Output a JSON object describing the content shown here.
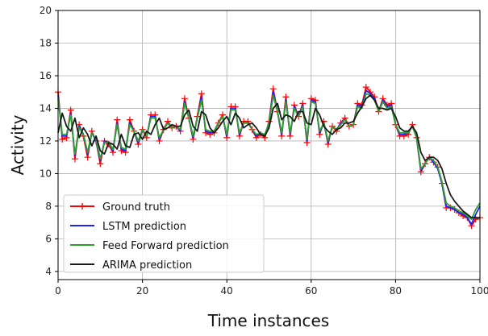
{
  "chart_data": {
    "type": "line",
    "xlabel": "Time instances",
    "ylabel": "Activity",
    "xlim": [
      0,
      100
    ],
    "ylim": [
      3.5,
      20
    ],
    "xticks": [
      0,
      20,
      40,
      60,
      80,
      100
    ],
    "yticks": [
      4,
      6,
      8,
      10,
      12,
      14,
      16,
      18,
      20
    ],
    "grid": true,
    "legend_position": "lower-left",
    "series": [
      {
        "name": "Ground truth",
        "color": "#ff0000",
        "marker": "plus",
        "x": [
          0,
          1,
          2,
          3,
          4,
          5,
          6,
          7,
          8,
          9,
          10,
          11,
          12,
          13,
          14,
          15,
          16,
          17,
          18,
          19,
          20,
          21,
          22,
          23,
          24,
          25,
          26,
          27,
          28,
          29,
          30,
          31,
          32,
          33,
          34,
          35,
          36,
          37,
          38,
          39,
          40,
          41,
          42,
          43,
          44,
          45,
          46,
          47,
          48,
          49,
          50,
          51,
          52,
          53,
          54,
          55,
          56,
          57,
          58,
          59,
          60,
          61,
          62,
          63,
          64,
          65,
          66,
          67,
          68,
          69,
          70,
          71,
          72,
          73,
          74,
          75,
          76,
          77,
          78,
          79,
          80,
          81,
          82,
          83,
          84,
          85,
          86,
          87,
          88,
          89,
          90,
          91,
          92,
          93,
          94,
          95,
          96,
          97,
          98,
          99,
          100
        ],
        "y": [
          15.0,
          12.1,
          12.2,
          13.9,
          10.9,
          13.0,
          12.3,
          11.0,
          12.6,
          12.0,
          10.6,
          12.0,
          11.8,
          11.3,
          13.3,
          11.4,
          11.3,
          13.3,
          12.6,
          11.8,
          12.7,
          12.2,
          13.6,
          13.6,
          12.0,
          12.7,
          13.2,
          12.8,
          12.9,
          12.6,
          14.6,
          13.4,
          12.1,
          13.5,
          14.9,
          12.5,
          12.4,
          12.5,
          13.1,
          13.6,
          12.2,
          14.1,
          14.1,
          12.3,
          13.2,
          13.2,
          12.7,
          12.2,
          12.4,
          12.2,
          13.2,
          15.2,
          13.8,
          12.3,
          14.7,
          12.3,
          14.2,
          13.5,
          14.3,
          11.9,
          14.6,
          14.5,
          12.4,
          13.2,
          11.8,
          12.9,
          12.6,
          13.1,
          13.4,
          12.9,
          13.0,
          14.3,
          14.2,
          15.3,
          15.0,
          14.7,
          13.8,
          14.6,
          14.2,
          14.3,
          13.0,
          12.3,
          12.3,
          12.4,
          13.0,
          12.2,
          10.1,
          10.6,
          11.0,
          10.7,
          10.4,
          9.4,
          7.9,
          7.9,
          7.8,
          7.6,
          7.4,
          7.3,
          6.8,
          7.2,
          7.3
        ]
      },
      {
        "name": "LSTM prediction",
        "color": "#1f1fff",
        "x": [
          0,
          1,
          2,
          3,
          4,
          5,
          6,
          7,
          8,
          9,
          10,
          11,
          12,
          13,
          14,
          15,
          16,
          17,
          18,
          19,
          20,
          21,
          22,
          23,
          24,
          25,
          26,
          27,
          28,
          29,
          30,
          31,
          32,
          33,
          34,
          35,
          36,
          37,
          38,
          39,
          40,
          41,
          42,
          43,
          44,
          45,
          46,
          47,
          48,
          49,
          50,
          51,
          52,
          53,
          54,
          55,
          56,
          57,
          58,
          59,
          60,
          61,
          62,
          63,
          64,
          65,
          66,
          67,
          68,
          69,
          70,
          71,
          72,
          73,
          74,
          75,
          76,
          77,
          78,
          79,
          80,
          81,
          82,
          83,
          84,
          85,
          86,
          87,
          88,
          89,
          90,
          91,
          92,
          93,
          94,
          95,
          96,
          97,
          98,
          99,
          100
        ],
        "y": [
          14.8,
          12.3,
          12.3,
          13.7,
          11.1,
          12.9,
          12.4,
          11.2,
          12.5,
          12.0,
          10.8,
          12.0,
          11.9,
          11.4,
          13.1,
          11.5,
          11.4,
          13.1,
          12.6,
          11.9,
          12.7,
          12.3,
          13.5,
          13.5,
          12.1,
          12.7,
          13.1,
          12.8,
          12.9,
          12.6,
          14.4,
          13.4,
          12.2,
          13.4,
          14.7,
          12.6,
          12.5,
          12.6,
          13.1,
          13.5,
          12.3,
          14.0,
          14.0,
          12.4,
          13.1,
          13.1,
          12.7,
          12.3,
          12.5,
          12.3,
          13.1,
          15.0,
          13.8,
          12.4,
          14.5,
          12.4,
          14.1,
          13.5,
          14.2,
          12.0,
          14.5,
          14.4,
          12.5,
          13.1,
          11.9,
          12.9,
          12.7,
          13.1,
          13.3,
          12.9,
          13.0,
          14.2,
          14.1,
          15.1,
          14.9,
          14.6,
          13.8,
          14.5,
          14.1,
          14.2,
          13.0,
          12.4,
          12.4,
          12.5,
          12.9,
          12.2,
          10.2,
          10.6,
          11.0,
          10.7,
          10.3,
          9.4,
          8.0,
          7.9,
          7.8,
          7.6,
          7.5,
          7.3,
          6.9,
          7.5,
          8.0
        ]
      },
      {
        "name": "Feed Forward prediction",
        "color": "#2ca02c",
        "x": [
          0,
          1,
          2,
          3,
          4,
          5,
          6,
          7,
          8,
          9,
          10,
          11,
          12,
          13,
          14,
          15,
          16,
          17,
          18,
          19,
          20,
          21,
          22,
          23,
          24,
          25,
          26,
          27,
          28,
          29,
          30,
          31,
          32,
          33,
          34,
          35,
          36,
          37,
          38,
          39,
          40,
          41,
          42,
          43,
          44,
          45,
          46,
          47,
          48,
          49,
          50,
          51,
          52,
          53,
          54,
          55,
          56,
          57,
          58,
          59,
          60,
          61,
          62,
          63,
          64,
          65,
          66,
          67,
          68,
          69,
          70,
          71,
          72,
          73,
          74,
          75,
          76,
          77,
          78,
          79,
          80,
          81,
          82,
          83,
          84,
          85,
          86,
          87,
          88,
          89,
          90,
          91,
          92,
          93,
          94,
          95,
          96,
          97,
          98,
          99,
          100
        ],
        "y": [
          14.6,
          12.4,
          12.4,
          13.6,
          11.2,
          12.8,
          12.4,
          11.3,
          12.5,
          12.1,
          10.9,
          11.9,
          11.9,
          11.5,
          13.0,
          11.6,
          11.5,
          13.0,
          12.6,
          12.0,
          12.7,
          12.3,
          13.4,
          13.4,
          12.2,
          12.7,
          13.1,
          12.8,
          12.9,
          12.7,
          14.3,
          13.4,
          12.3,
          13.4,
          14.5,
          12.7,
          12.6,
          12.6,
          13.1,
          13.5,
          12.4,
          13.9,
          13.9,
          12.5,
          13.1,
          13.1,
          12.7,
          12.4,
          12.5,
          12.4,
          13.1,
          14.8,
          13.8,
          12.5,
          14.4,
          12.5,
          14.0,
          13.5,
          14.1,
          12.1,
          14.4,
          14.3,
          12.6,
          13.1,
          12.0,
          12.9,
          12.7,
          13.0,
          13.3,
          12.9,
          13.0,
          14.1,
          14.0,
          14.9,
          14.8,
          14.5,
          13.8,
          14.4,
          14.0,
          14.1,
          13.0,
          12.5,
          12.5,
          12.5,
          12.9,
          12.2,
          10.3,
          10.6,
          11.0,
          10.8,
          10.4,
          9.5,
          8.2,
          8.0,
          7.9,
          7.7,
          7.6,
          7.4,
          7.2,
          7.8,
          8.2
        ]
      },
      {
        "name": "ARIMA prediction",
        "color": "#1a1a1a",
        "x": [
          0,
          1,
          2,
          3,
          4,
          5,
          6,
          7,
          8,
          9,
          10,
          11,
          12,
          13,
          14,
          15,
          16,
          17,
          18,
          19,
          20,
          21,
          22,
          23,
          24,
          25,
          26,
          27,
          28,
          29,
          30,
          31,
          32,
          33,
          34,
          35,
          36,
          37,
          38,
          39,
          40,
          41,
          42,
          43,
          44,
          45,
          46,
          47,
          48,
          49,
          50,
          51,
          52,
          53,
          54,
          55,
          56,
          57,
          58,
          59,
          60,
          61,
          62,
          63,
          64,
          65,
          66,
          67,
          68,
          69,
          70,
          71,
          72,
          73,
          74,
          75,
          76,
          77,
          78,
          79,
          80,
          81,
          82,
          83,
          84,
          85,
          86,
          87,
          88,
          89,
          90,
          91,
          92,
          93,
          94,
          95,
          96,
          97,
          98,
          99,
          100
        ],
        "y": [
          12.5,
          13.7,
          12.9,
          12.6,
          13.4,
          12.2,
          12.8,
          12.4,
          11.7,
          12.3,
          11.4,
          11.2,
          11.9,
          11.8,
          11.5,
          12.4,
          11.7,
          11.6,
          12.4,
          12.5,
          12.1,
          12.6,
          12.4,
          13.0,
          13.4,
          12.7,
          12.8,
          13.0,
          12.9,
          12.9,
          13.6,
          13.9,
          12.9,
          12.6,
          13.8,
          13.6,
          12.8,
          12.5,
          12.8,
          13.2,
          13.5,
          13.0,
          13.7,
          13.4,
          12.8,
          13.0,
          13.1,
          12.8,
          12.4,
          12.3,
          12.8,
          14.0,
          14.3,
          13.3,
          13.6,
          13.5,
          13.2,
          13.8,
          13.8,
          13.1,
          13.0,
          14.0,
          13.6,
          12.9,
          12.6,
          12.4,
          12.7,
          12.8,
          13.1,
          13.1,
          13.2,
          13.7,
          14.1,
          14.6,
          14.8,
          14.5,
          14.0,
          14.0,
          13.9,
          14.0,
          13.5,
          12.8,
          12.6,
          12.6,
          12.9,
          12.5,
          11.3,
          10.8,
          11.0,
          11.0,
          10.8,
          10.3,
          9.4,
          8.7,
          8.3,
          8.0,
          7.7,
          7.5,
          7.3,
          7.3,
          7.3
        ]
      }
    ]
  }
}
